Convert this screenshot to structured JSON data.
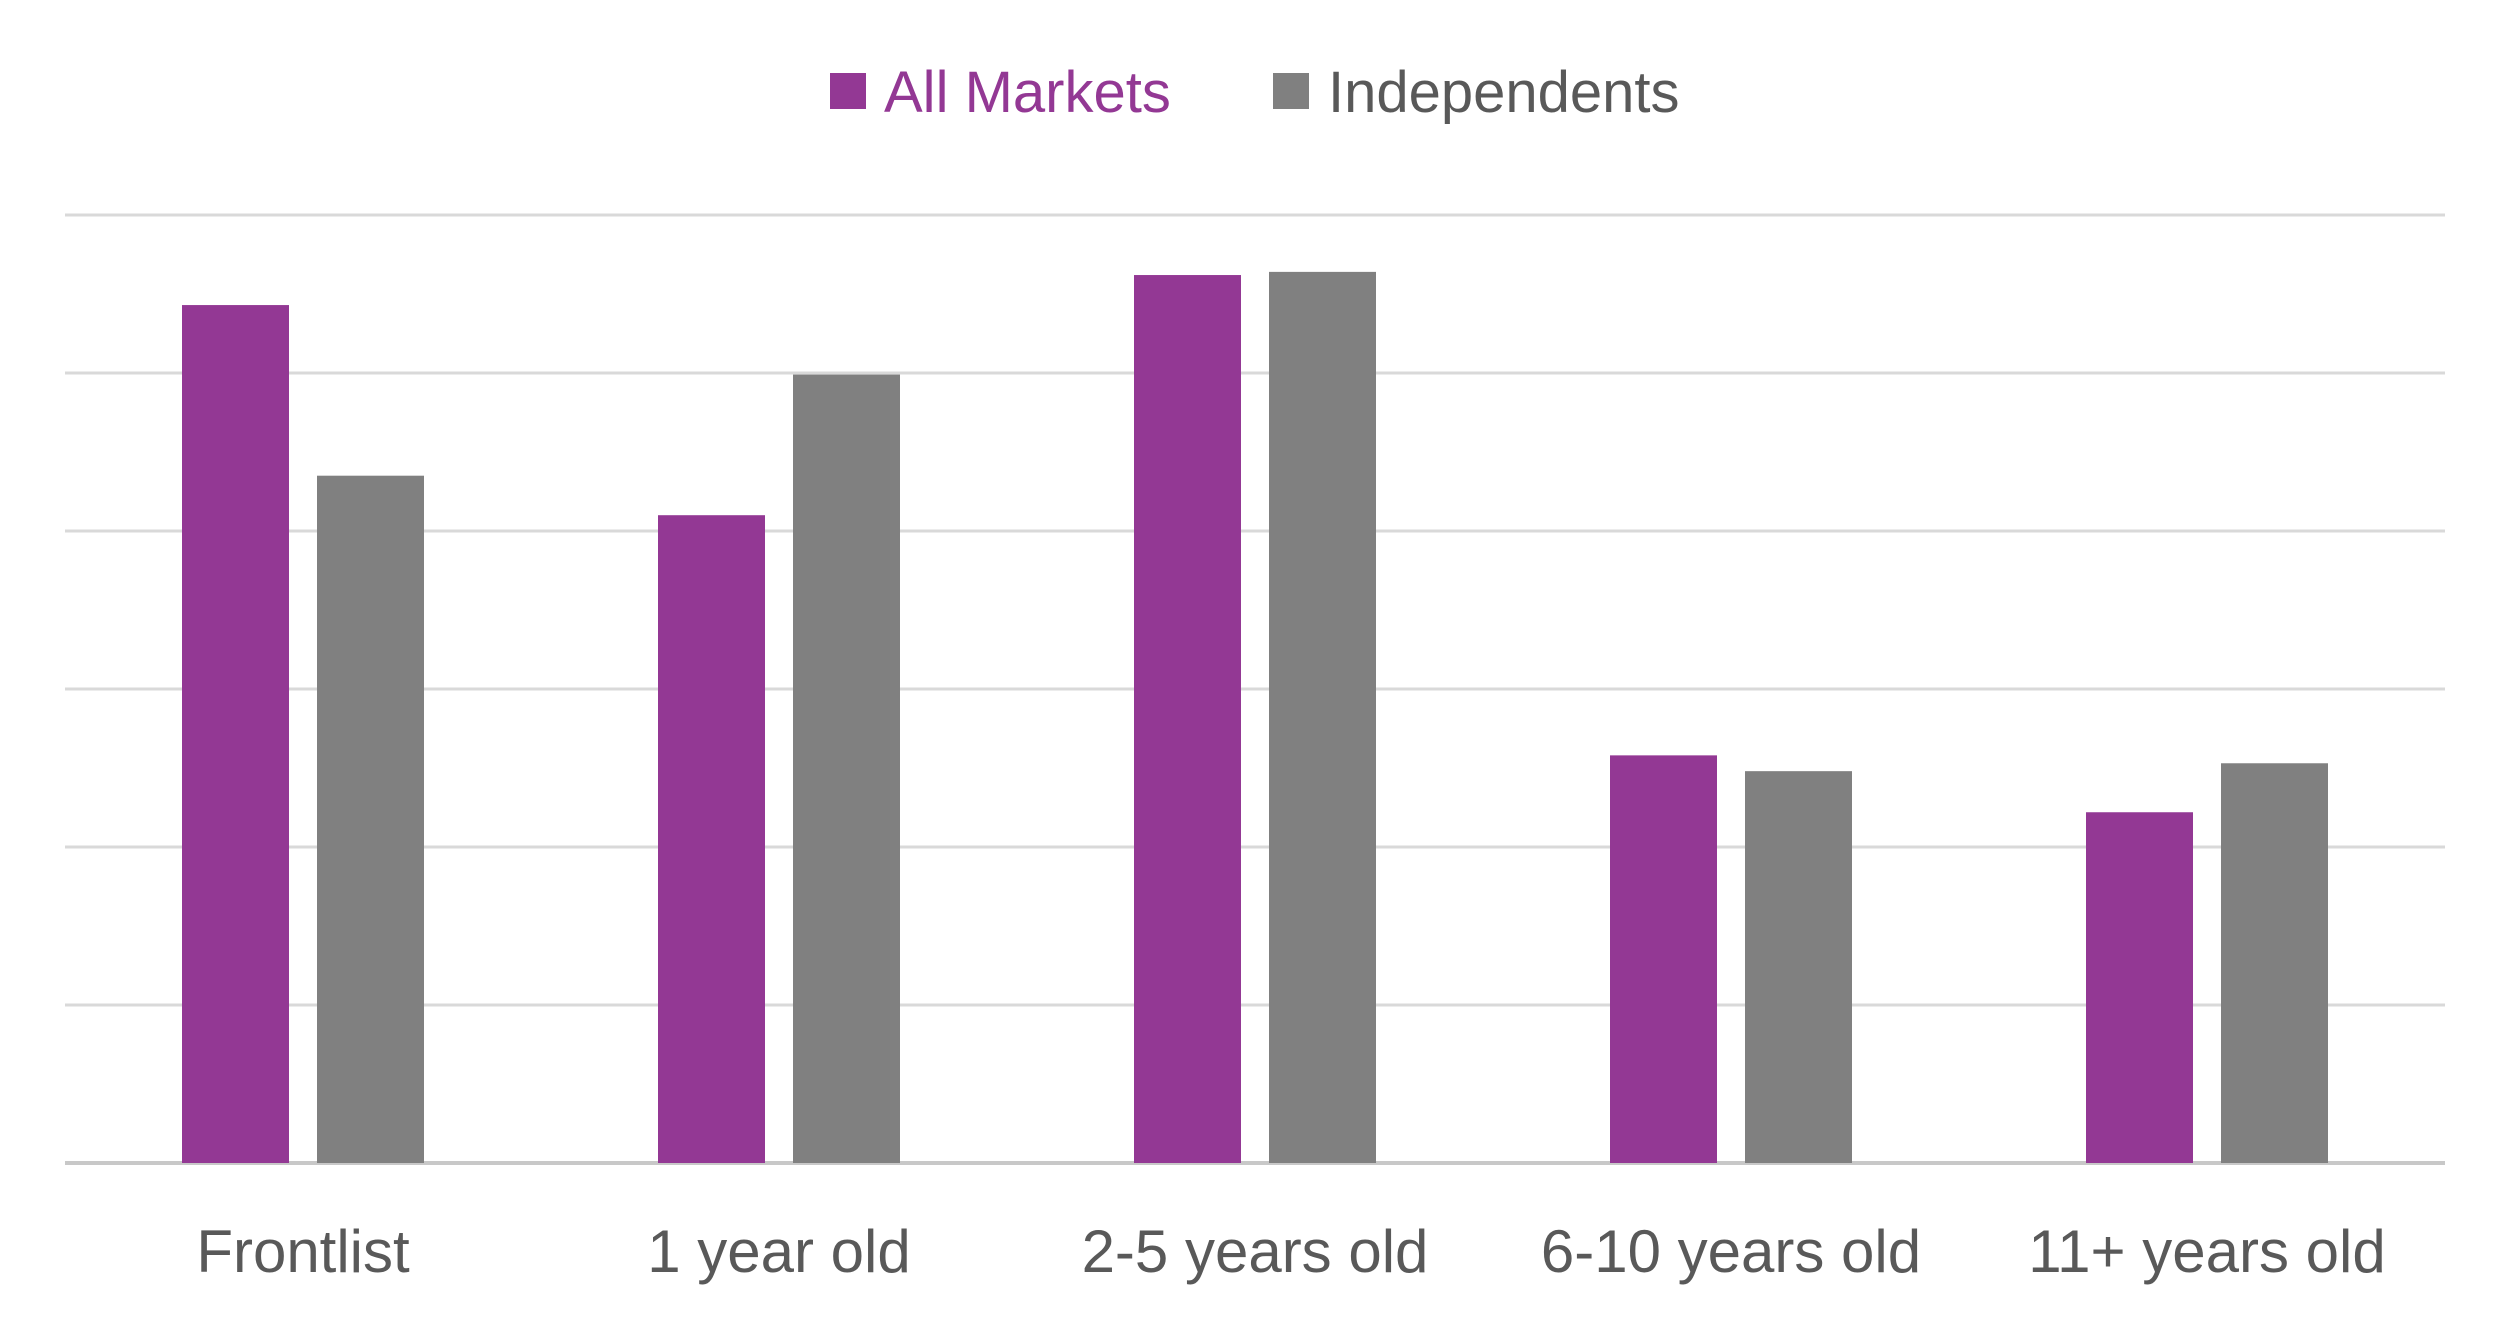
{
  "chart_data": {
    "type": "bar",
    "categories": [
      "Frontlist",
      "1 year old",
      "2-5 years old",
      "6-10 years old",
      "11+ years old"
    ],
    "series": [
      {
        "name": "All Markets",
        "color": "#933894",
        "values": [
          5.43,
          4.1,
          5.62,
          2.58,
          2.22
        ]
      },
      {
        "name": "Independents",
        "color": "#808080",
        "values": [
          4.35,
          4.99,
          5.64,
          2.48,
          2.53
        ]
      }
    ],
    "ylim": [
      0,
      6
    ],
    "grid": true,
    "legend": "top-center",
    "title": "",
    "xlabel": "",
    "ylabel": ""
  }
}
